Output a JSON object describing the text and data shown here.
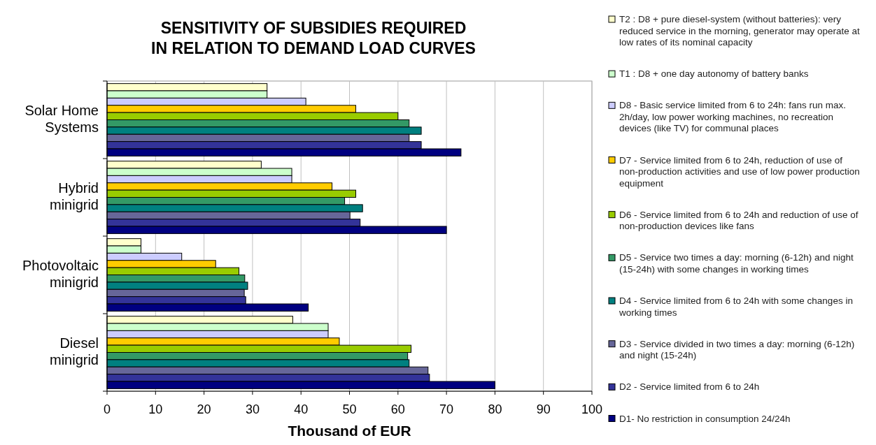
{
  "chart_data": {
    "type": "bar",
    "orientation": "horizontal",
    "title": "SENSITIVITY OF SUBSIDIES REQUIRED\nIN RELATION TO DEMAND LOAD CURVES",
    "xlabel": "Thousand of EUR",
    "categories": [
      "Solar Home Systems",
      "Hybrid minigrid",
      "Photovoltaic minigrid",
      "Diesel minigrid"
    ],
    "series": [
      {
        "name": "T2 : D8 + pure diesel-system (without batteries): very reduced service in the morning, generator may operate at low rates of its nominal capacity",
        "color": "#ffffcc",
        "values": [
          33.0,
          31.8,
          7.0,
          38.3
        ]
      },
      {
        "name": "T1 : D8 + one day autonomy of battery banks",
        "color": "#ccffcc",
        "values": [
          33.0,
          38.1,
          7.0,
          45.6
        ]
      },
      {
        "name": "D8 - Basic service limited from 6 to 24h: fans run max. 2h/day, low power working machines, no recreation devices (like TV) for communal places",
        "color": "#ccccff",
        "values": [
          41.0,
          38.1,
          15.4,
          45.6
        ]
      },
      {
        "name": "D7 - Service limited from 6 to 24h, reduction of use of non-production activities and use of low power production equipment",
        "color": "#ffcc00",
        "values": [
          51.3,
          46.4,
          22.4,
          47.9
        ]
      },
      {
        "name": "D6 - Service limited from 6 to 24h and reduction of use of non-production devices like fans",
        "color": "#99cc00",
        "values": [
          60.0,
          51.3,
          27.2,
          62.7
        ]
      },
      {
        "name": "D5 - Service two times a day: morning (6-12h) and night (15-24h) with some changes in working times",
        "color": "#339966",
        "values": [
          62.3,
          49.0,
          28.4,
          62.0
        ]
      },
      {
        "name": "D4 - Service limited from 6 to 24h with some changes in working times",
        "color": "#008080",
        "values": [
          64.8,
          52.7,
          29.0,
          62.3
        ]
      },
      {
        "name": "D3 - Service divided in two times a day: morning (6-12h) and night (15-24h)",
        "color": "#666699",
        "values": [
          62.3,
          50.1,
          28.3,
          66.2
        ]
      },
      {
        "name": "D2 - Service limited from 6 to 24h",
        "color": "#333399",
        "values": [
          64.8,
          52.2,
          28.6,
          66.5
        ]
      },
      {
        "name": "D1- No restriction in consumption 24/24h",
        "color": "#000080",
        "values": [
          73.0,
          70.0,
          41.5,
          80.0
        ]
      }
    ],
    "xlim": [
      0,
      100
    ],
    "xticks": [
      0,
      10,
      20,
      30,
      40,
      50,
      60,
      70,
      80,
      90,
      100
    ],
    "grid": "x",
    "legend": "right"
  }
}
